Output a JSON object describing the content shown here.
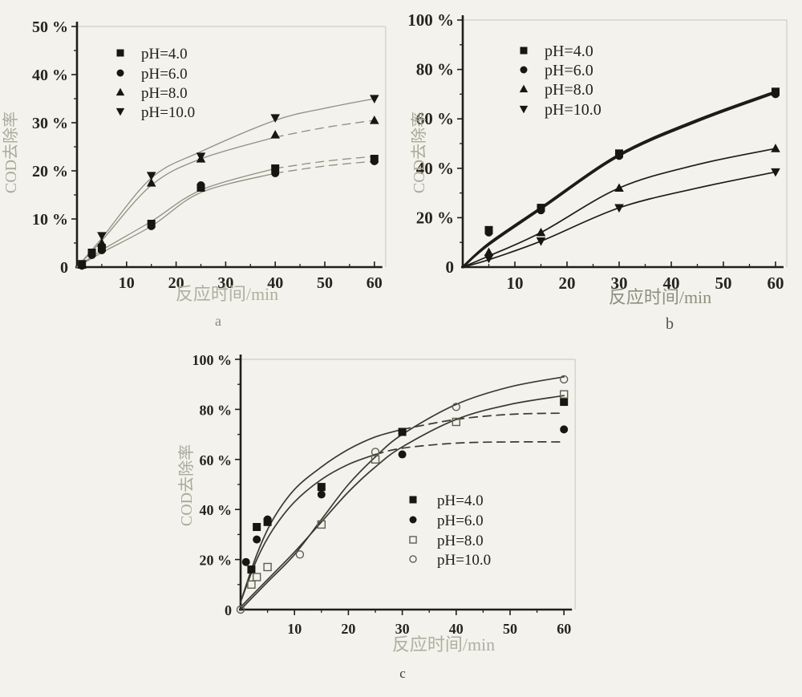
{
  "figure": {
    "background": "#f3f2ec",
    "marker_color": "#17170f",
    "open_marker_stroke": "#5f5f52",
    "axis_color": "#211f1a",
    "tick_label_color": "#26241d",
    "faint_label_color": "#aaa99a",
    "frame_color": "#cfcec2"
  },
  "chart_data": [
    {
      "id": "a",
      "type": "scatter-line",
      "xlabel": "反应时间/min",
      "ylabel": "COD去除率",
      "sublabel": "a",
      "xlim": [
        0,
        62
      ],
      "ylim": [
        0,
        50
      ],
      "xticks": [
        10,
        20,
        30,
        40,
        50,
        60
      ],
      "x_minor_step": 5,
      "y_minor_step": 5,
      "yticks": [
        {
          "v": 0,
          "label": "0"
        },
        {
          "v": 10,
          "label": "10 %"
        },
        {
          "v": 20,
          "label": "20 %"
        },
        {
          "v": 30,
          "label": "30 %"
        },
        {
          "v": 40,
          "label": "40 %"
        },
        {
          "v": 50,
          "label": "50 %"
        }
      ],
      "series": [
        {
          "name": "pH=4.0",
          "marker": "square-filled",
          "points": {
            "x": [
              1,
              3,
              5,
              15,
              25,
              40,
              60
            ],
            "y": [
              0.5,
              3,
              4,
              9,
              16.5,
              20.5,
              22.5
            ]
          },
          "curve": {
            "x": [
              0,
              5,
              15,
              25,
              40,
              50,
              60
            ],
            "y": [
              0,
              3.5,
              9.5,
              16,
              20.5,
              22,
              23
            ],
            "color": "#8f9080",
            "width": 1.3,
            "dash_after": 40
          }
        },
        {
          "name": "pH=6.0",
          "marker": "circle-filled",
          "points": {
            "x": [
              1,
              3,
              5,
              15,
              25,
              40,
              60
            ],
            "y": [
              0.3,
              2.5,
              3.5,
              8.5,
              17,
              19.5,
              22
            ]
          },
          "curve": {
            "x": [
              0,
              5,
              15,
              25,
              40,
              50,
              60
            ],
            "y": [
              0,
              3,
              8.5,
              15.5,
              19.5,
              21,
              22
            ],
            "color": "#8f9080",
            "width": 1.3,
            "dash_after": 40
          }
        },
        {
          "name": "pH=8.0",
          "marker": "triangle-up-filled",
          "points": {
            "x": [
              1,
              5,
              15,
              25,
              40,
              60
            ],
            "y": [
              0.5,
              5,
              17.5,
              22.5,
              27.5,
              30.5
            ]
          },
          "curve": {
            "x": [
              0,
              5,
              15,
              25,
              40,
              50,
              60
            ],
            "y": [
              0,
              5.5,
              17,
              22.5,
              27,
              29,
              30.5
            ],
            "color": "#8f9080",
            "width": 1.3,
            "dash_after": 40
          }
        },
        {
          "name": "pH=10.0",
          "marker": "triangle-down-filled",
          "points": {
            "x": [
              1,
              5,
              15,
              25,
              40,
              60
            ],
            "y": [
              0.7,
              6.5,
              19,
              23,
              31,
              35
            ]
          },
          "curve": {
            "x": [
              0,
              5,
              15,
              25,
              40,
              50,
              60
            ],
            "y": [
              0,
              6,
              18.5,
              24,
              30.5,
              33,
              35
            ],
            "color": "#8f9080",
            "width": 1.3
          }
        }
      ]
    },
    {
      "id": "b",
      "type": "scatter-line",
      "xlabel": "反应时间/min",
      "ylabel": "COD去除率",
      "sublabel": "b",
      "xlim": [
        0,
        62
      ],
      "ylim": [
        0,
        100
      ],
      "xticks": [
        10,
        20,
        30,
        40,
        50,
        60
      ],
      "x_minor_step": 5,
      "y_minor_step": 10,
      "yticks": [
        {
          "v": 0,
          "label": "0"
        },
        {
          "v": 20,
          "label": "20 %"
        },
        {
          "v": 40,
          "label": "40 %"
        },
        {
          "v": 60,
          "label": "60 %"
        },
        {
          "v": 80,
          "label": "80 %"
        },
        {
          "v": 100,
          "label": "100 %"
        }
      ],
      "series": [
        {
          "name": "pH=4.0",
          "marker": "square-filled",
          "points": {
            "x": [
              5,
              15,
              30,
              60
            ],
            "y": [
              15,
              24,
              46,
              71
            ]
          },
          "curve": {
            "x": [
              0,
              5,
              15,
              30,
              45,
              60
            ],
            "y": [
              0,
              9.5,
              24,
              45.5,
              59.5,
              71
            ],
            "color": "#1d1c16",
            "width": 3
          }
        },
        {
          "name": "pH=6.0",
          "marker": "circle-filled",
          "points": {
            "x": [
              5,
              15,
              30,
              60
            ],
            "y": [
              14,
              23,
              45,
              70
            ]
          },
          "curve": {
            "x": [
              0,
              5,
              15,
              30,
              45,
              60
            ],
            "y": [
              0,
              9,
              23.5,
              45,
              59,
              70.5
            ],
            "color": "#1d1c16",
            "width": 2.2
          }
        },
        {
          "name": "pH=8.0",
          "marker": "triangle-up-filled",
          "points": {
            "x": [
              5,
              15,
              30,
              60
            ],
            "y": [
              6,
              14,
              32,
              48
            ]
          },
          "curve": {
            "x": [
              0,
              5,
              15,
              30,
              45,
              60
            ],
            "y": [
              0,
              4.5,
              14,
              32,
              41.5,
              48
            ],
            "color": "#1d1c16",
            "width": 1.7
          }
        },
        {
          "name": "pH=10.0",
          "marker": "triangle-down-filled",
          "points": {
            "x": [
              5,
              15,
              30,
              60
            ],
            "y": [
              3.5,
              10.5,
              24,
              38.5
            ]
          },
          "curve": {
            "x": [
              0,
              5,
              15,
              30,
              45,
              60
            ],
            "y": [
              0,
              3,
              10.5,
              24,
              32,
              38.5
            ],
            "color": "#1d1c16",
            "width": 1.7
          }
        }
      ]
    },
    {
      "id": "c",
      "type": "scatter-line",
      "xlabel": "反应时间/min",
      "ylabel": "COD去除率",
      "sublabel": "c",
      "xlim": [
        0,
        62
      ],
      "ylim": [
        0,
        100
      ],
      "xticks": [
        10,
        20,
        30,
        40,
        50,
        60
      ],
      "x_minor_step": 5,
      "y_minor_step": 10,
      "yticks": [
        {
          "v": 0,
          "label": "0"
        },
        {
          "v": 20,
          "label": "20 %"
        },
        {
          "v": 40,
          "label": "40 %"
        },
        {
          "v": 60,
          "label": "60 %"
        },
        {
          "v": 80,
          "label": "80 %"
        },
        {
          "v": 100,
          "label": "100 %"
        }
      ],
      "series": [
        {
          "name": "pH=4.0",
          "marker": "square-filled",
          "points": {
            "x": [
              2,
              3,
              5,
              15,
              30,
              60
            ],
            "y": [
              16,
              33,
              35,
              49,
              71,
              83
            ]
          },
          "curve": {
            "x": [
              0,
              3,
              6,
              10,
              15,
              20,
              25,
              30,
              40,
              50,
              60
            ],
            "y": [
              3,
              22,
              36,
              48,
              57,
              64,
              69,
              72,
              76,
              78,
              78.5
            ],
            "color": "#3b3a30",
            "width": 1.7,
            "dash_after": 30
          }
        },
        {
          "name": "pH=6.0",
          "marker": "circle-filled",
          "points": {
            "x": [
              1,
              3,
              5,
              15,
              30,
              60
            ],
            "y": [
              19,
              28,
              36,
              46,
              62,
              72
            ]
          },
          "curve": {
            "x": [
              0,
              3,
              6,
              10,
              15,
              20,
              25,
              30,
              40,
              50,
              60
            ],
            "y": [
              3,
              20,
              32,
              43,
              52,
              58,
              62,
              64.5,
              66.5,
              67,
              67
            ],
            "color": "#3b3a30",
            "width": 1.7,
            "dash_after": 25
          }
        },
        {
          "name": "pH=8.0",
          "marker": "square-open",
          "points": {
            "x": [
              2,
              3,
              5,
              15,
              25,
              40,
              60
            ],
            "y": [
              10,
              13,
              17,
              34,
              60,
              75,
              86
            ]
          },
          "curve": {
            "x": [
              0,
              5,
              10,
              15,
              20,
              25,
              30,
              40,
              50,
              60
            ],
            "y": [
              1,
              12,
              23,
              35,
              47,
              57,
              65,
              76,
              82,
              85.5
            ],
            "color": "#3b3a30",
            "width": 1.7
          }
        },
        {
          "name": "pH=10.0",
          "marker": "circle-open",
          "points": {
            "x": [
              0,
              11,
              25,
              40,
              60
            ],
            "y": [
              0,
              22,
              63,
              81,
              92
            ]
          },
          "curve": {
            "x": [
              0,
              5,
              10,
              15,
              20,
              25,
              30,
              40,
              50,
              60
            ],
            "y": [
              0,
              11,
              22,
              36,
              50,
              61,
              70,
              82,
              89,
              93
            ],
            "color": "#3b3a30",
            "width": 1.7
          }
        }
      ]
    }
  ]
}
